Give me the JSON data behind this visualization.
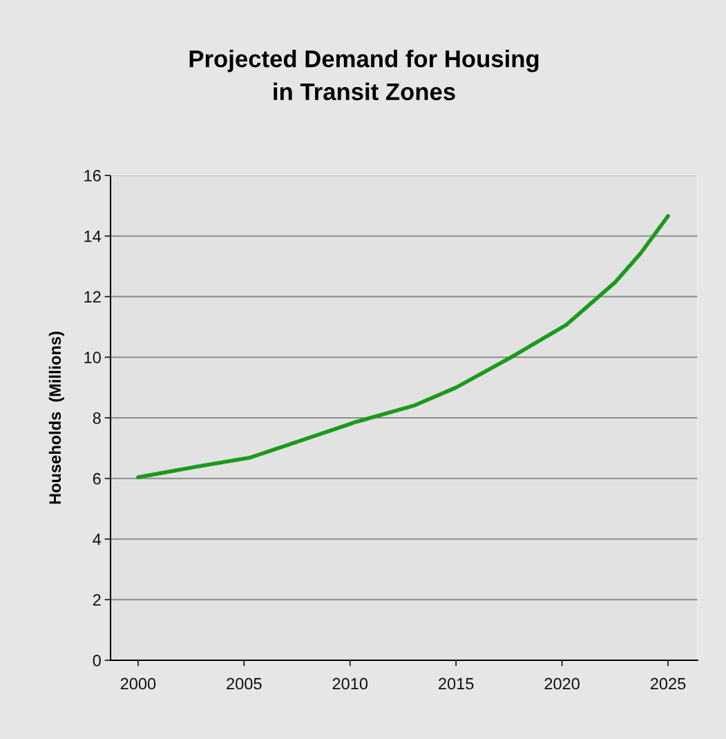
{
  "chart_data": {
    "type": "line",
    "title": "Projected Demand for Housing\nin Transit Zones",
    "ylabel": "Households  (Millions)",
    "x": [
      2000,
      2002.7,
      2005.3,
      2007.9,
      2010.3,
      2013,
      2015,
      2017.6,
      2020.2,
      2022.5,
      2023.7,
      2025
    ],
    "series": [
      {
        "color": "#1b9a1b",
        "values": [
          6.04,
          6.38,
          6.69,
          7.3,
          7.87,
          8.4,
          9.0,
          10.0,
          11.07,
          12.47,
          13.42,
          14.66
        ]
      }
    ],
    "xlim": [
      1998.7,
      2026.4
    ],
    "xticks": [
      2000,
      2005,
      2010,
      2015,
      2020,
      2025
    ],
    "ylim": [
      0,
      16
    ],
    "yticks": [
      0,
      2,
      4,
      6,
      8,
      10,
      12,
      14,
      16
    ],
    "grid": "y",
    "marker": "none",
    "line_style": "solid"
  }
}
